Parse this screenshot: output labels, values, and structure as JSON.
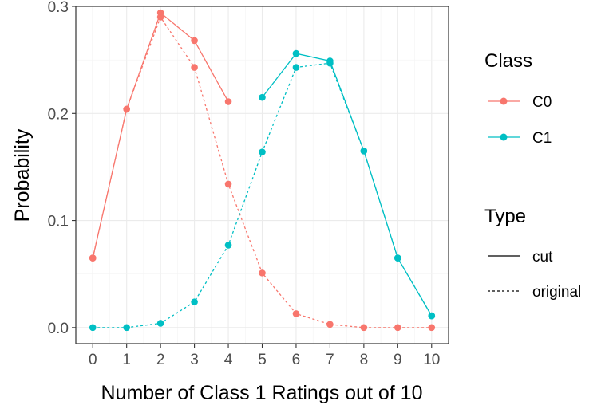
{
  "chart_data": {
    "type": "line",
    "xlabel": "Number of Class 1 Ratings out of 10",
    "ylabel": "Probability",
    "xlim": [
      -0.5,
      10.5
    ],
    "ylim": [
      -0.015,
      0.3
    ],
    "x_ticks": [
      0,
      1,
      2,
      3,
      4,
      5,
      6,
      7,
      8,
      9,
      10
    ],
    "y_ticks": [
      0.0,
      0.1,
      0.2,
      0.3
    ],
    "y_tick_labels": [
      "0.0",
      "0.1",
      "0.2",
      "0.3"
    ],
    "grid": true,
    "legend_placement": "right",
    "legends": {
      "color": {
        "title": "Class",
        "entries": [
          {
            "label": "C0",
            "color": "#F8766D"
          },
          {
            "label": "C1",
            "color": "#00BFC4"
          }
        ]
      },
      "linetype": {
        "title": "Type",
        "entries": [
          {
            "label": "cut",
            "dash": "solid"
          },
          {
            "label": "original",
            "dash": "dotted"
          }
        ]
      }
    },
    "series": [
      {
        "class": "C0",
        "type": "cut",
        "color": "#F8766D",
        "dash": "solid",
        "x": [
          0,
          1,
          2,
          3,
          4
        ],
        "y": [
          0.065,
          0.204,
          0.294,
          0.268,
          0.211
        ]
      },
      {
        "class": "C0",
        "type": "original",
        "color": "#F8766D",
        "dash": "dotted",
        "x": [
          0,
          1,
          2,
          3,
          4,
          5,
          6,
          7,
          8,
          9,
          10
        ],
        "y": [
          0.065,
          0.204,
          0.29,
          0.243,
          0.134,
          0.051,
          0.013,
          0.003,
          0.0,
          0.0,
          0.0
        ]
      },
      {
        "class": "C1",
        "type": "cut",
        "color": "#00BFC4",
        "dash": "solid",
        "x": [
          5,
          6,
          7,
          8,
          9,
          10
        ],
        "y": [
          0.215,
          0.256,
          0.249,
          0.165,
          0.065,
          0.011
        ]
      },
      {
        "class": "C1",
        "type": "original",
        "color": "#00BFC4",
        "dash": "dotted",
        "x": [
          0,
          1,
          2,
          3,
          4,
          5,
          6,
          7,
          8,
          9,
          10
        ],
        "y": [
          0.0,
          0.0,
          0.004,
          0.024,
          0.077,
          0.164,
          0.243,
          0.247,
          0.165,
          0.065,
          0.011
        ]
      }
    ]
  }
}
